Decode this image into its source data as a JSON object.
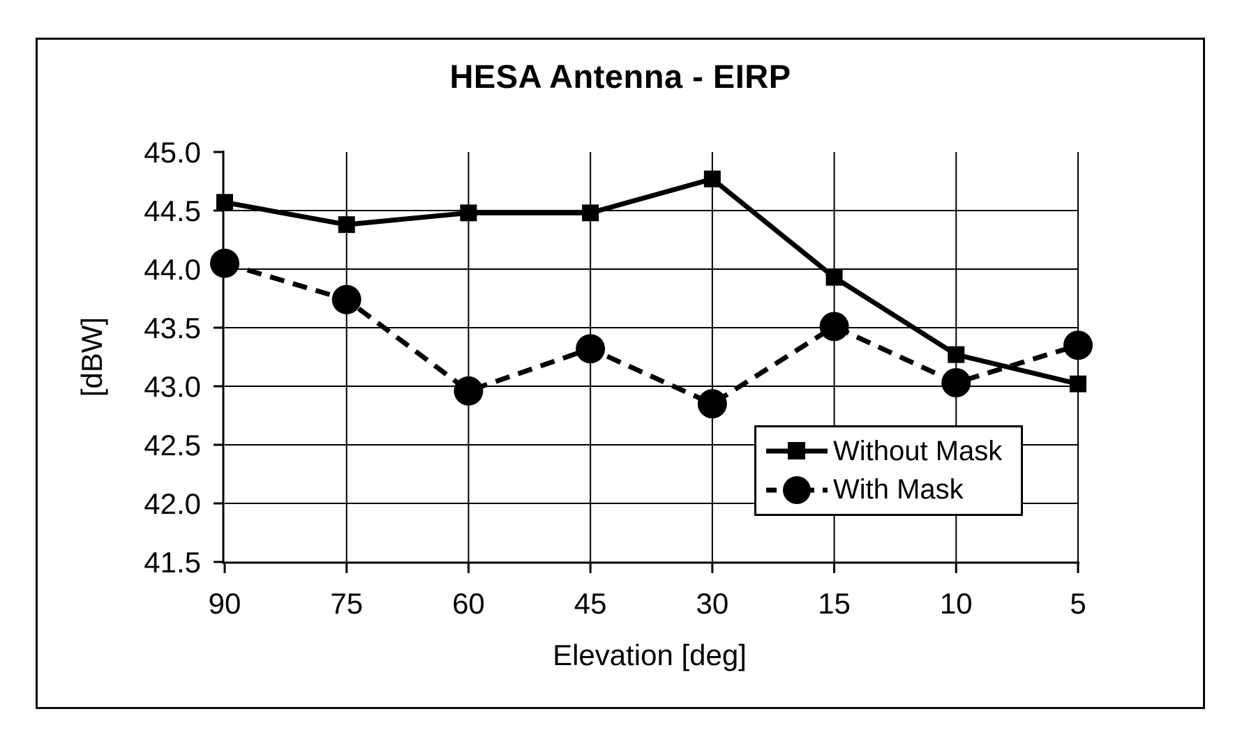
{
  "chart_data": {
    "type": "line",
    "title": "HESA Antenna - EIRP",
    "xlabel": "Elevation [deg]",
    "ylabel": "[dBW]",
    "categories": [
      90,
      75,
      60,
      45,
      30,
      15,
      10,
      5
    ],
    "x_tick_labels": [
      "90",
      "75",
      "60",
      "45",
      "30",
      "15",
      "10",
      "5"
    ],
    "y_ticks": [
      "45.0",
      "44.5",
      "44.0",
      "43.5",
      "43.0",
      "42.5",
      "42.0",
      "41.5"
    ],
    "ylim": [
      41.5,
      45.0
    ],
    "grid": true,
    "legend_position": "inside-bottom-right",
    "foreground_color": "#000000",
    "background_color": "#ffffff",
    "series": [
      {
        "name": "Without Mask",
        "marker": "square",
        "line_style": "solid",
        "color": "#000000",
        "values": [
          44.57,
          44.38,
          44.48,
          44.48,
          44.77,
          43.93,
          43.27,
          43.02
        ]
      },
      {
        "name": "With Mask",
        "marker": "circle",
        "line_style": "dashed",
        "color": "#000000",
        "values": [
          44.05,
          43.74,
          42.96,
          43.32,
          42.85,
          43.51,
          43.03,
          43.35
        ]
      }
    ]
  }
}
